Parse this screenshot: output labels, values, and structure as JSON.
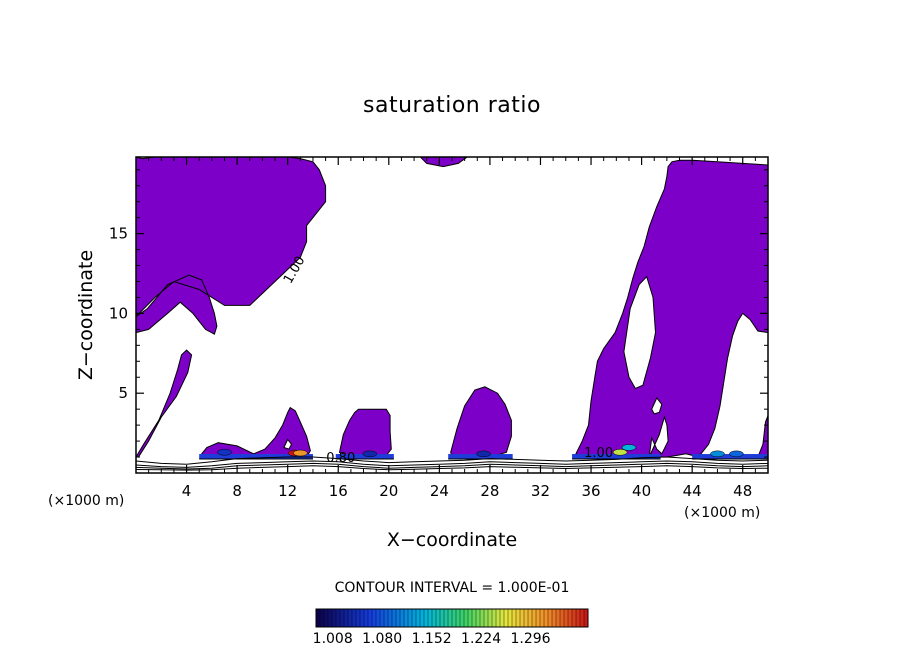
{
  "chart_data": {
    "type": "contour",
    "title": "saturation ratio",
    "xlabel": "X−coordinate",
    "ylabel": "Z−coordinate",
    "x_unit_label": "(×1000 m)",
    "x_ticks": [
      4,
      8,
      12,
      16,
      20,
      24,
      28,
      32,
      36,
      40,
      44,
      48
    ],
    "y_ticks": [
      5,
      10,
      15
    ],
    "xlim": [
      0,
      50
    ],
    "ylim": [
      0,
      19.8
    ],
    "contour_interval_text": "CONTOUR INTERVAL = 1.000E-01",
    "colorbar": {
      "tick_labels": [
        "1.008",
        "1.080",
        "1.152",
        "1.224",
        "1.296"
      ],
      "range": [
        1.0,
        1.3
      ]
    },
    "contour_labels": [
      {
        "text": "1.00",
        "x": 12.8,
        "z": 12.6,
        "angle": -60
      },
      {
        "text": "0.80",
        "x": 16.2,
        "z": 0.7,
        "angle": 0
      },
      {
        "text": "1.00",
        "x": 36.6,
        "z": 1.0,
        "angle": 0
      }
    ],
    "fill_color": "#7d00c8",
    "supersaturated_regions": [
      {
        "x": [
          0.0,
          0.9,
          2.5,
          4.2,
          5.2,
          5.8,
          6.2,
          6.4,
          6.2,
          5.5,
          4.5,
          3.5,
          2.5,
          1.0,
          0.0,
          0.0,
          0.5,
          1.5,
          2.5,
          4.0,
          5.5,
          7.0,
          8.0,
          9.5,
          11.0,
          12.0,
          13.0,
          14.0,
          14.5,
          15.0,
          15.0,
          14.0,
          13.5,
          13.5,
          13.0,
          11.0,
          9.0,
          7.0,
          5.0,
          3.0,
          1.5,
          0.0
        ],
        "z": [
          9.8,
          10.3,
          11.8,
          12.4,
          12.1,
          11.0,
          10.0,
          9.2,
          8.7,
          9.0,
          10.0,
          10.7,
          10.0,
          9.0,
          8.8,
          19.8,
          19.7,
          19.8,
          19.8,
          19.8,
          19.9,
          19.9,
          19.8,
          19.8,
          19.8,
          19.8,
          19.7,
          19.5,
          19.0,
          18.0,
          17.0,
          16.0,
          15.5,
          14.5,
          13.5,
          12.0,
          10.5,
          10.5,
          11.5,
          12.0,
          11.0,
          9.8
        ]
      },
      {
        "x": [
          0.0,
          0.6,
          1.8,
          2.7,
          3.3,
          3.6,
          4.0,
          4.4,
          4.1,
          3.2,
          2.0,
          1.0,
          0.2,
          0.0
        ],
        "z": [
          1.0,
          1.8,
          3.3,
          5.0,
          6.5,
          7.4,
          7.7,
          7.4,
          6.3,
          4.8,
          3.5,
          2.0,
          1.0,
          1.0
        ]
      },
      {
        "x": [
          5.2,
          5.6,
          6.5,
          8.0,
          9.3,
          10.2,
          11.0,
          11.6,
          12.0,
          12.2,
          12.6,
          13.0,
          13.5,
          13.8,
          13.5,
          12.5,
          11.0,
          9.0,
          7.0,
          5.6,
          5.2
        ],
        "z": [
          1.2,
          1.6,
          1.9,
          1.7,
          1.2,
          1.5,
          2.2,
          3.0,
          3.8,
          4.1,
          3.9,
          3.2,
          2.3,
          1.4,
          1.0,
          0.9,
          1.0,
          1.0,
          1.0,
          1.0,
          1.2
        ]
      },
      {
        "x": [
          16.1,
          16.4,
          16.9,
          17.3,
          17.6,
          18.7,
          19.8,
          20.1,
          20.1,
          20.2,
          19.8,
          18.5,
          17.0,
          16.1
        ],
        "z": [
          1.3,
          2.4,
          3.3,
          3.8,
          4.0,
          4.0,
          4.0,
          3.6,
          2.6,
          1.5,
          1.1,
          1.0,
          1.0,
          1.3
        ]
      },
      {
        "x": [
          24.9,
          25.4,
          26.0,
          26.8,
          27.6,
          28.6,
          29.2,
          29.7,
          29.7,
          29.3,
          28.0,
          26.5,
          25.0,
          24.9
        ],
        "z": [
          1.3,
          2.8,
          4.2,
          5.2,
          5.4,
          5.0,
          4.3,
          3.3,
          2.3,
          1.3,
          1.0,
          1.0,
          1.0,
          1.3
        ]
      },
      {
        "x": [
          22.5,
          23.0,
          24.3,
          25.5,
          26.2,
          25.0,
          24.0,
          23.0,
          22.5
        ],
        "z": [
          19.8,
          19.4,
          19.2,
          19.4,
          19.8,
          19.9,
          19.9,
          19.9,
          19.8
        ]
      },
      {
        "x": [
          34.8,
          35.3,
          35.8,
          36.0,
          36.3,
          36.5,
          37.0,
          37.9,
          38.5,
          38.9,
          39.3,
          39.7,
          40.2,
          40.6,
          41.2,
          41.8,
          42.0,
          42.1,
          42.4,
          43.0,
          44.0,
          46.0,
          48.0,
          50.0,
          50.0,
          49.2,
          48.6,
          48.0,
          47.6,
          47.2,
          46.8,
          46.5,
          46.2,
          45.8,
          45.3,
          44.7,
          44.3,
          44.0,
          43.5,
          42.8,
          42.0,
          41.0,
          39.0,
          37.0,
          35.5,
          34.8
        ],
        "z": [
          1.2,
          2.0,
          3.0,
          4.5,
          6.0,
          7.0,
          7.8,
          8.8,
          10.0,
          11.0,
          12.2,
          13.2,
          14.2,
          15.4,
          16.7,
          17.8,
          18.6,
          19.2,
          19.5,
          19.6,
          19.6,
          19.5,
          19.4,
          19.3,
          8.8,
          8.9,
          9.6,
          10.0,
          9.5,
          8.6,
          7.2,
          5.7,
          4.2,
          2.8,
          1.8,
          1.2,
          1.1,
          1.1,
          1.2,
          1.1,
          1.0,
          1.0,
          1.0,
          1.0,
          1.0,
          1.2
        ]
      },
      {
        "x": [
          49.6,
          49.8,
          50.0,
          50.0,
          49.2,
          49.6
        ],
        "z": [
          1.8,
          3.2,
          3.6,
          1.0,
          1.0,
          1.8
        ]
      }
    ],
    "subsaturated_holes": [
      {
        "x": [
          38.6,
          39.1,
          39.8,
          40.4,
          40.9,
          41.1,
          40.7,
          40.1,
          39.5,
          39.0,
          38.6
        ],
        "z": [
          7.6,
          10.3,
          11.8,
          12.3,
          11.0,
          8.8,
          7.2,
          5.5,
          5.3,
          6.0,
          7.6
        ]
      },
      {
        "x": [
          40.6,
          41.4,
          41.8,
          42.0,
          42.1,
          41.6,
          41.2,
          40.8,
          40.6
        ],
        "z": [
          1.0,
          2.4,
          3.5,
          3.0,
          2.0,
          1.2,
          1.5,
          2.2,
          1.0
        ]
      },
      {
        "x": [
          40.8,
          41.2,
          41.6,
          41.4,
          41.0,
          40.8
        ],
        "z": [
          4.0,
          4.7,
          4.3,
          3.8,
          3.7,
          4.0
        ]
      },
      {
        "x": [
          11.7,
          12.0,
          12.3,
          12.1,
          11.7
        ],
        "z": [
          1.6,
          2.1,
          1.8,
          1.5,
          1.6
        ]
      }
    ],
    "cloud_base_bands": [
      {
        "x": [
          5.0,
          14.0
        ],
        "z": 1.0
      },
      {
        "x": [
          15.8,
          20.4
        ],
        "z": 1.0
      },
      {
        "x": [
          24.7,
          29.8
        ],
        "z": 1.0
      },
      {
        "x": [
          34.5,
          41.5
        ],
        "z": 1.0
      },
      {
        "x": [
          44.0,
          50.0
        ],
        "z": 1.0
      }
    ],
    "peak_cells": [
      {
        "x": 12.6,
        "z": 1.25,
        "level": 1.3
      },
      {
        "x": 13.0,
        "z": 1.25,
        "level": 1.25
      },
      {
        "x": 38.3,
        "z": 1.3,
        "level": 1.2
      },
      {
        "x": 39.0,
        "z": 1.6,
        "level": 1.12
      },
      {
        "x": 46.0,
        "z": 1.2,
        "level": 1.1
      },
      {
        "x": 47.5,
        "z": 1.2,
        "level": 1.08
      },
      {
        "x": 7.0,
        "z": 1.3,
        "level": 1.05
      },
      {
        "x": 18.5,
        "z": 1.2,
        "level": 1.04
      },
      {
        "x": 27.5,
        "z": 1.2,
        "level": 1.04
      }
    ],
    "surface_contours": [
      {
        "level": 0.8,
        "z": [
          0.5,
          0.4,
          0.35,
          0.45,
          0.6,
          0.65,
          0.7,
          0.75,
          0.7,
          0.55,
          0.45,
          0.5,
          0.55,
          0.6,
          0.7,
          0.65,
          0.6,
          0.55,
          0.6,
          0.65,
          0.7,
          0.75,
          0.7,
          0.6,
          0.55,
          0.6
        ]
      },
      {
        "level": 0.7,
        "z": [
          0.35,
          0.3,
          0.25,
          0.3,
          0.45,
          0.5,
          0.55,
          0.6,
          0.55,
          0.4,
          0.3,
          0.35,
          0.4,
          0.45,
          0.55,
          0.5,
          0.45,
          0.4,
          0.45,
          0.5,
          0.55,
          0.6,
          0.55,
          0.45,
          0.4,
          0.45
        ]
      },
      {
        "level": 0.6,
        "z": [
          0.22,
          0.2,
          0.18,
          0.2,
          0.3,
          0.35,
          0.4,
          0.45,
          0.4,
          0.28,
          0.2,
          0.24,
          0.28,
          0.32,
          0.4,
          0.36,
          0.32,
          0.28,
          0.32,
          0.36,
          0.4,
          0.45,
          0.4,
          0.32,
          0.28,
          0.3
        ]
      },
      {
        "level": 0.9,
        "z": [
          0.75,
          0.6,
          0.55,
          0.7,
          0.9,
          0.95,
          1.0,
          1.0,
          0.9,
          0.75,
          0.65,
          0.7,
          0.75,
          0.8,
          0.9,
          0.85,
          0.8,
          0.75,
          0.8,
          0.85,
          0.95,
          1.0,
          0.9,
          0.8,
          0.75,
          0.8
        ]
      }
    ]
  }
}
